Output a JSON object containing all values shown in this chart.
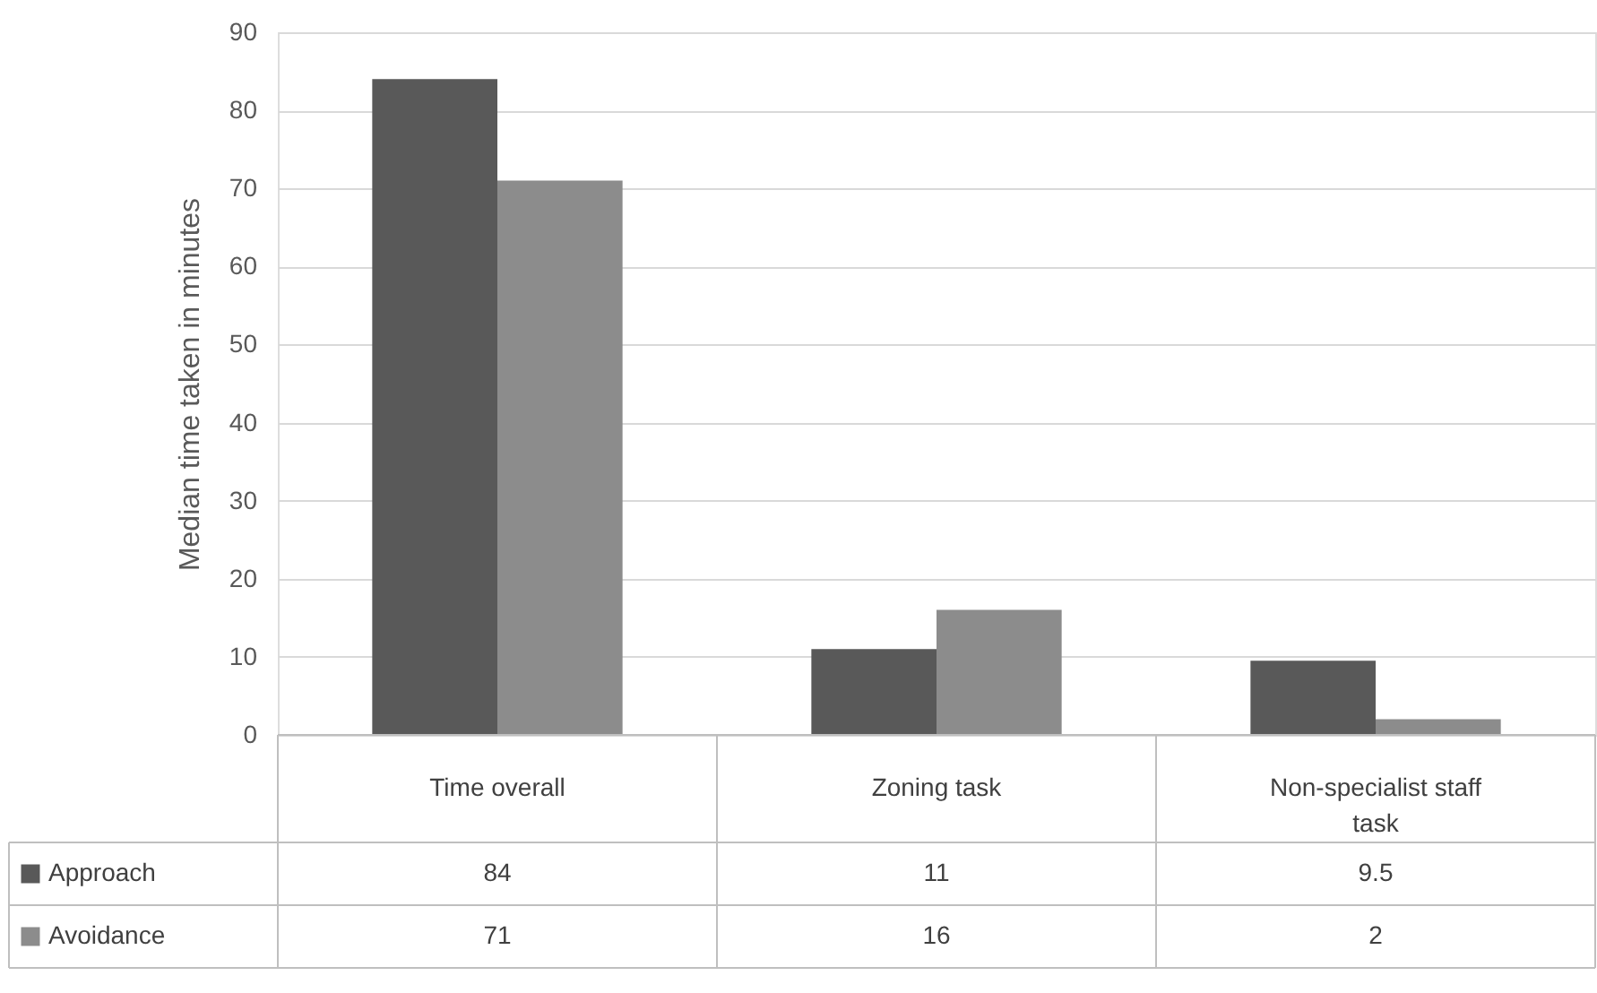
{
  "chart_data": {
    "type": "bar",
    "ylabel": "Median time taken in minutes",
    "categories": [
      "Time overall",
      "Zoning task",
      "Non-specialist staff task"
    ],
    "series": [
      {
        "name": "Approach",
        "color": "#595959",
        "values": [
          84,
          11,
          9.5
        ]
      },
      {
        "name": "Avoidance",
        "color": "#8c8c8c",
        "values": [
          71,
          16,
          2
        ]
      }
    ],
    "ylim": [
      0,
      90
    ],
    "yticks": [
      0,
      10,
      20,
      30,
      40,
      50,
      60,
      70,
      80,
      90
    ],
    "grid": "y",
    "legend": "bottom left",
    "data_labels": true
  }
}
